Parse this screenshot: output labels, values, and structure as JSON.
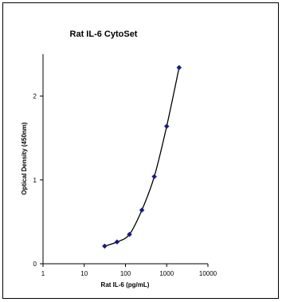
{
  "chart_data": {
    "type": "scatter",
    "title": "Rat IL-6 CytoSet",
    "xlabel": "Rat IL-6 (pg/mL)",
    "ylabel": "Optical Density (450nm)",
    "x_scale": "log",
    "xlim": [
      1,
      10000
    ],
    "ylim": [
      0,
      2.5
    ],
    "x_ticks": [
      "1",
      "10",
      "100",
      "1000",
      "10000"
    ],
    "y_ticks": [
      "0",
      "1",
      "2"
    ],
    "grid": false,
    "legend": "none",
    "marker_color": "#1a1a80",
    "series": [
      {
        "x": [
          31.25,
          62.5,
          125,
          250,
          500,
          1000,
          2000
        ],
        "y": [
          0.21,
          0.26,
          0.35,
          0.64,
          1.04,
          1.64,
          2.34
        ]
      }
    ]
  }
}
